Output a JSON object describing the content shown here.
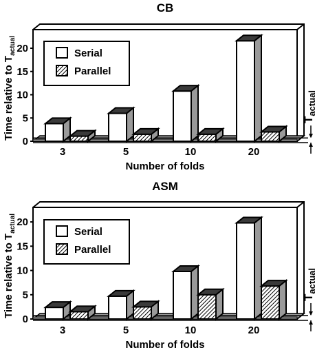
{
  "chart_data": [
    {
      "type": "bar",
      "title": "CB",
      "xlabel": "Number of folds",
      "ylabel": "Time relative to T",
      "ylabel_sub": "actual",
      "side_label": "T",
      "side_label_sub": "actual",
      "categories": [
        "3",
        "5",
        "10",
        "20"
      ],
      "ylim": [
        0,
        24
      ],
      "yticks": [
        "0",
        "5",
        "10",
        "15",
        "20"
      ],
      "legend_position": "upper-left",
      "series": [
        {
          "name": "Serial",
          "values": [
            3.8,
            6.0,
            10.8,
            21.6
          ]
        },
        {
          "name": "Parallel",
          "values": [
            1.1,
            1.5,
            1.5,
            2.0
          ]
        }
      ]
    },
    {
      "type": "bar",
      "title": "ASM",
      "xlabel": "Number of folds",
      "ylabel": "Time relative to T",
      "ylabel_sub": "actual",
      "side_label": "T",
      "side_label_sub": "actual",
      "categories": [
        "3",
        "5",
        "10",
        "20"
      ],
      "ylim": [
        0,
        23
      ],
      "yticks": [
        "0",
        "5",
        "10",
        "15",
        "20"
      ],
      "legend_position": "upper-left",
      "series": [
        {
          "name": "Serial",
          "values": [
            2.4,
            4.7,
            9.8,
            19.8
          ]
        },
        {
          "name": "Parallel",
          "values": [
            1.5,
            2.5,
            5.0,
            6.8
          ]
        }
      ]
    }
  ],
  "colors": {
    "ink": "#000000",
    "serial_face": "#ffffff",
    "top_face": "#3a3a3a",
    "side_face": "#9a9a9a",
    "floor": "#9a9a9a"
  }
}
